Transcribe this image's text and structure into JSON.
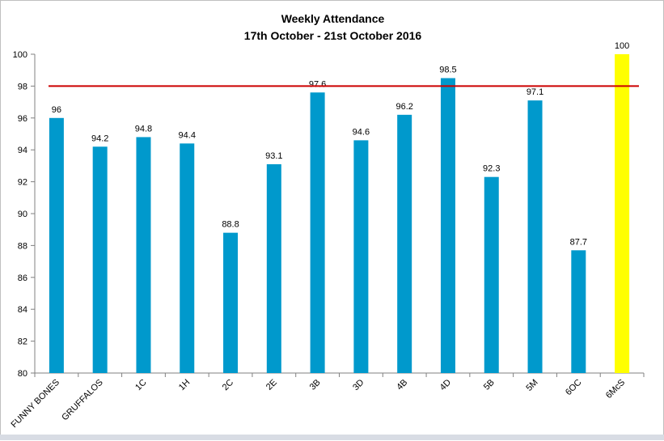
{
  "chart_data": {
    "type": "bar",
    "title": "Weekly Attendance",
    "subtitle": "17th  October  - 21st  October  2016",
    "xlabel": "",
    "ylabel": "",
    "categories": [
      "FUNNY BONES",
      "GRUFFALOS",
      "1C",
      "1H",
      "2C",
      "2E",
      "3B",
      "3D",
      "4B",
      "4D",
      "5B",
      "5M",
      "6OC",
      "6McS"
    ],
    "values": [
      96,
      94.2,
      94.8,
      94.4,
      88.8,
      93.1,
      97.6,
      94.6,
      96.2,
      98.5,
      92.3,
      97.1,
      87.7,
      100
    ],
    "data_labels": [
      "96",
      "94.2",
      "94.8",
      "94.4",
      "88.8",
      "93.1",
      "97.6",
      "94.6",
      "96.2",
      "98.5",
      "92.3",
      "97.1",
      "87.7",
      "100"
    ],
    "ylim": [
      80,
      100
    ],
    "yticks": [
      80,
      82,
      84,
      86,
      88,
      90,
      92,
      94,
      96,
      98,
      100
    ],
    "target_line": 98,
    "grid": false,
    "legend": "none",
    "colors": {
      "bar": "#0099cc",
      "highlight_bar": "#ffff00",
      "highlight_category": "6McS",
      "target_line": "#cc0000",
      "axis": "#808080"
    }
  }
}
